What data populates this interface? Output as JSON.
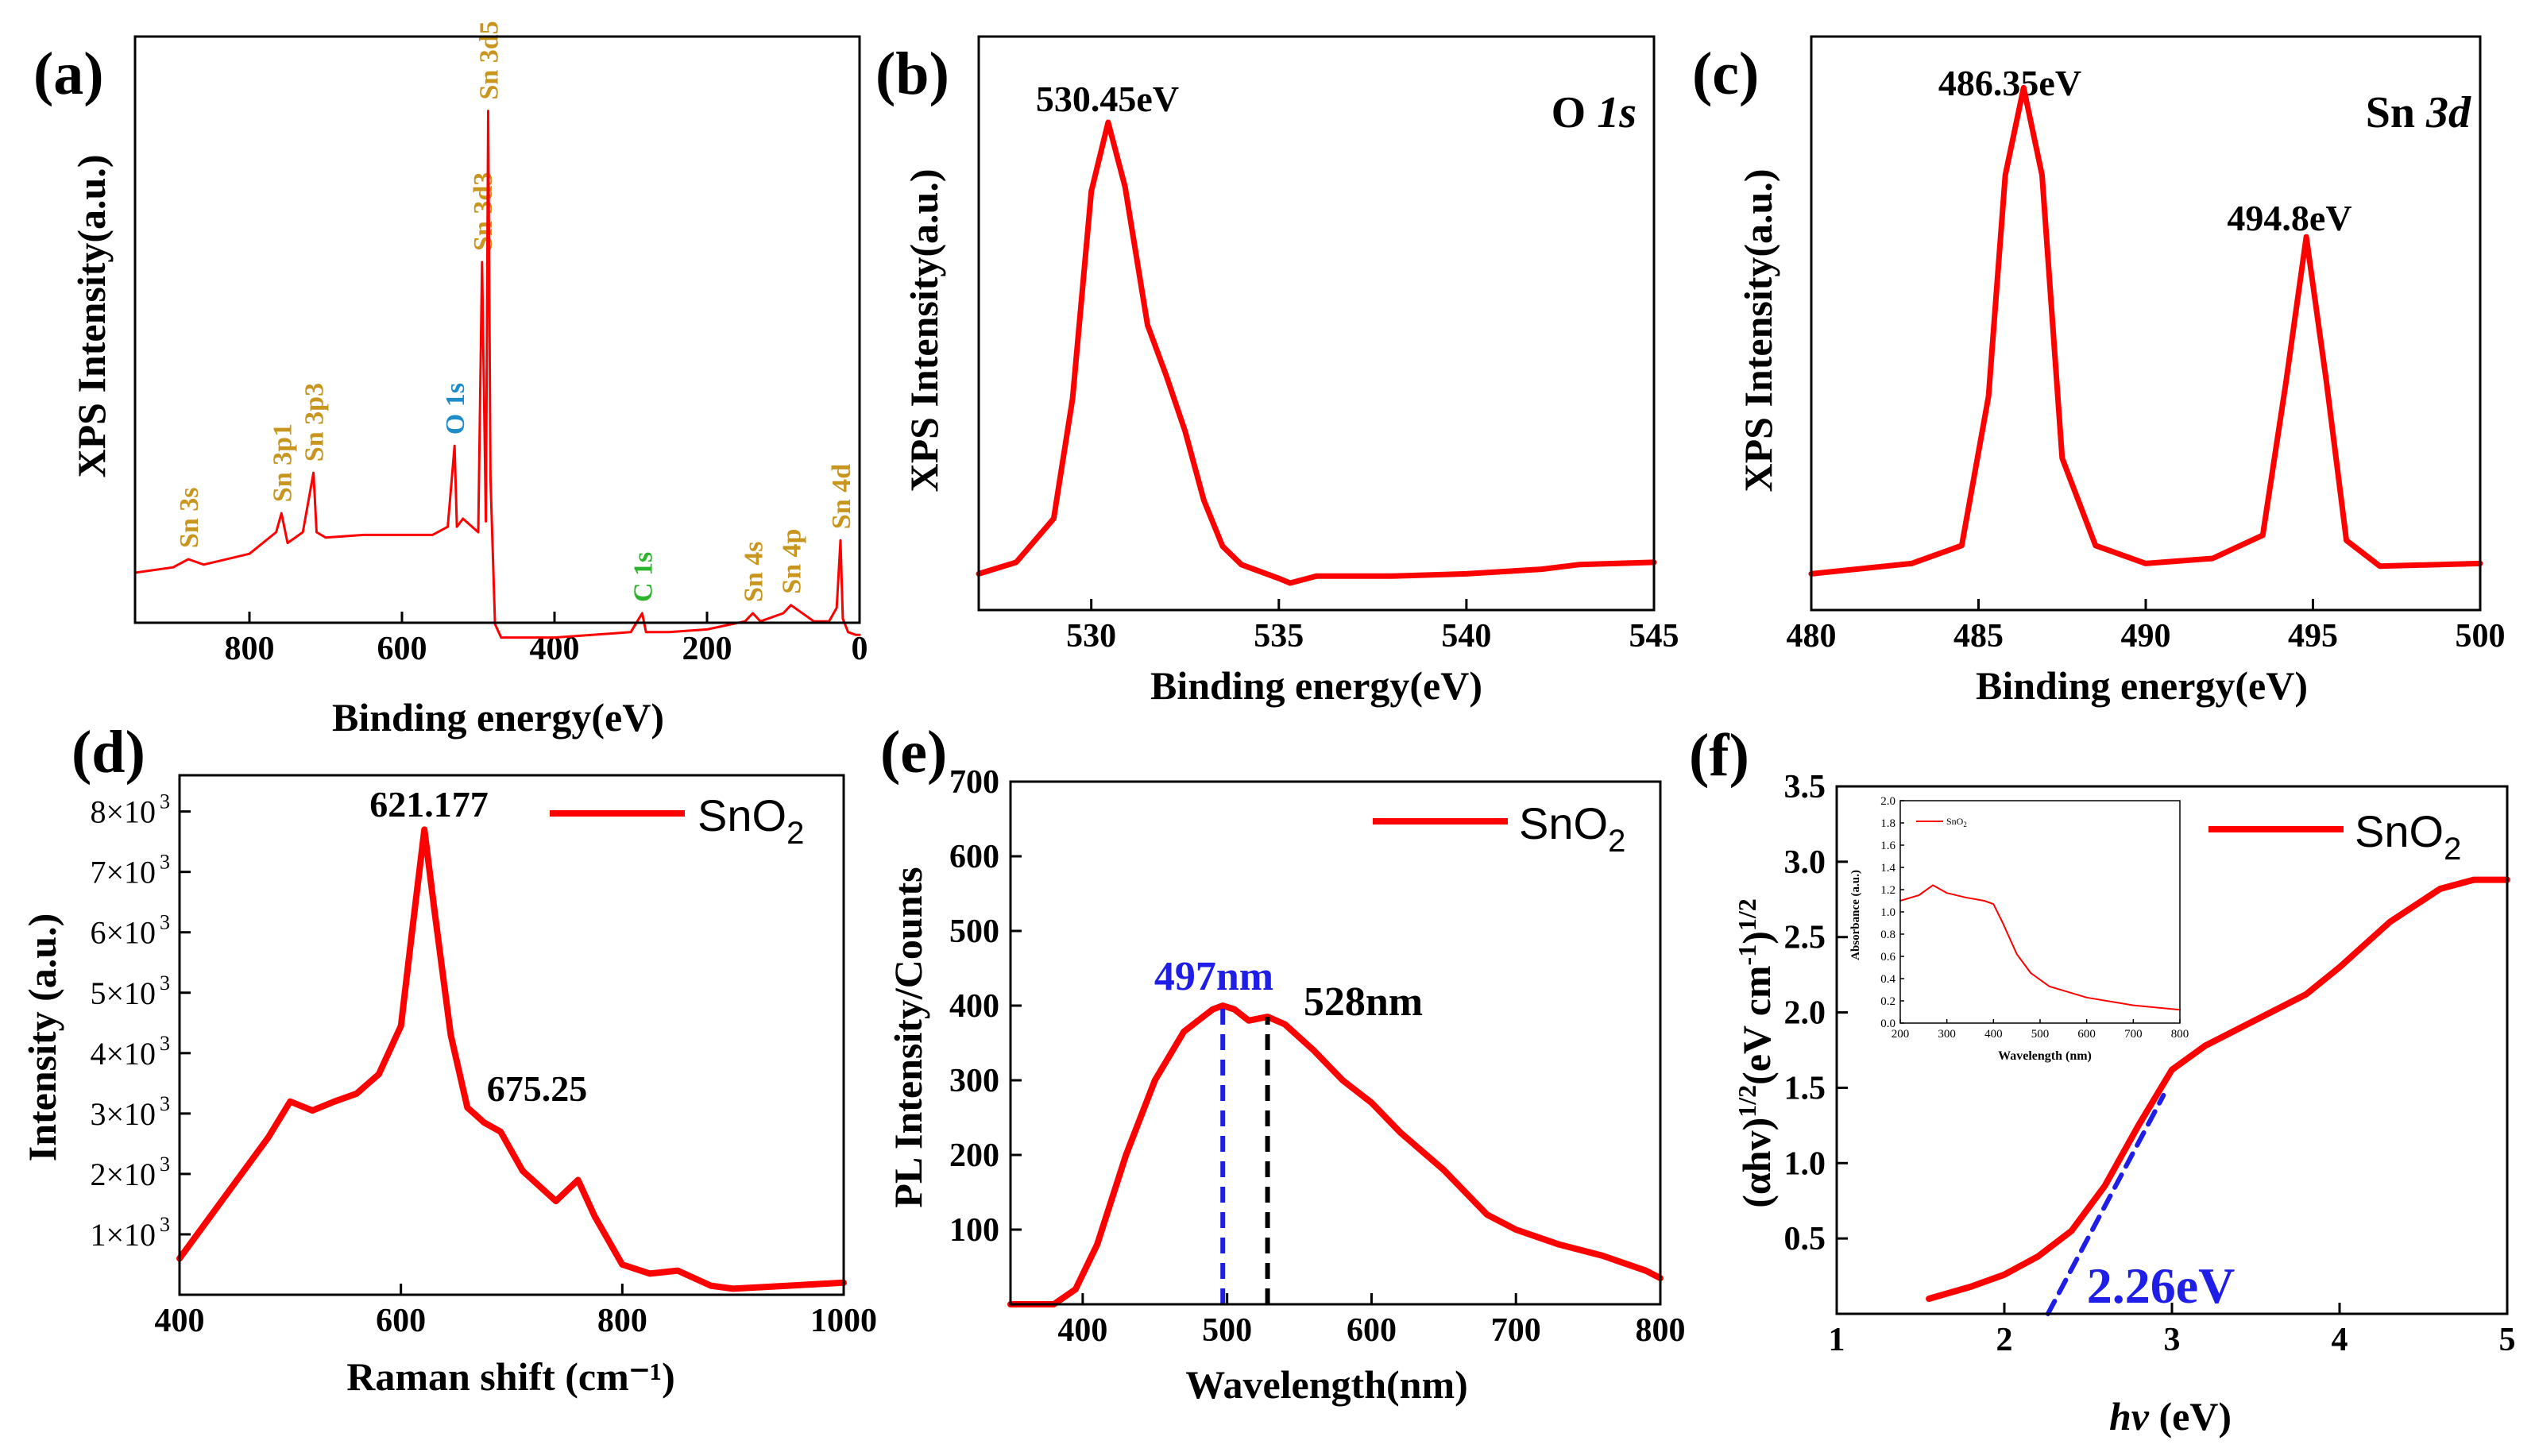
{
  "panels": {
    "a": {
      "label": "(a)",
      "xlabel": "Binding energy(eV)",
      "ylabel": "XPS Intensity(a.u.)",
      "xticks": [
        "800",
        "600",
        "400",
        "200",
        "0"
      ]
    },
    "b": {
      "label": "(b)",
      "xlabel": "Binding energy(eV)",
      "ylabel": "XPS Intensity(a.u.)",
      "title_main": "O ",
      "title_orbital": "1s",
      "peak": "530.45eV",
      "xticks": [
        "530",
        "535",
        "540",
        "545"
      ]
    },
    "c": {
      "label": "(c)",
      "xlabel": "Binding energy(eV)",
      "ylabel": "XPS Intensity(a.u.)",
      "title_main": "Sn ",
      "title_orbital": "3d",
      "peak1": "486.35eV",
      "peak2": "494.8eV",
      "xticks": [
        "480",
        "485",
        "490",
        "495",
        "500"
      ]
    },
    "d": {
      "label": "(d)",
      "xlabel": "Raman shift (cm⁻¹)",
      "ylabel": "Intensity (a.u.)",
      "peak1": "621.177",
      "peak2": "675.25",
      "legend": "SnO",
      "legend_sub": "2",
      "xticks": [
        "400",
        "600",
        "800",
        "1000"
      ],
      "ytick_mantissas": [
        "1×10",
        "2×10",
        "3×10",
        "4×10",
        "5×10",
        "6×10",
        "7×10",
        "8×10"
      ],
      "ytick_exp": "3"
    },
    "e": {
      "label": "(e)",
      "xlabel": "Wavelength(nm)",
      "ylabel": "PL Intensity/Counts",
      "peak1": "497nm",
      "peak2": "528nm",
      "legend": "SnO",
      "legend_sub": "2",
      "xticks": [
        "400",
        "500",
        "600",
        "700",
        "800"
      ],
      "yticks": [
        "100",
        "200",
        "300",
        "400",
        "500",
        "600",
        "700"
      ]
    },
    "f": {
      "label": "(f)",
      "xlabel_italic": "hv",
      "xlabel_rest": " (eV)",
      "ylabel_a": "(αhv)",
      "ylabel_sup1": "1/2",
      "ylabel_b": "(eV cm",
      "ylabel_sup2": "-1",
      "ylabel_c": ")",
      "ylabel_sup3": "1/2",
      "bandgap": "2.26eV",
      "legend": "SnO",
      "legend_sub": "2",
      "xticks": [
        "1",
        "2",
        "3",
        "4",
        "5"
      ],
      "yticks": [
        "0.5",
        "1.0",
        "1.5",
        "2.0",
        "2.5",
        "3.0",
        "3.5"
      ],
      "inset": {
        "ylabel": "Absorbance (a.u.)",
        "xlabel": "Wavelength (nm)",
        "legend": "SnO",
        "legend_sub": "2",
        "xticks": [
          "200",
          "300",
          "400",
          "500",
          "600",
          "700",
          "800"
        ],
        "yticks": [
          "0.0",
          "0.2",
          "0.4",
          "0.6",
          "0.8",
          "1.0",
          "1.2",
          "1.4",
          "1.6",
          "1.8",
          "2.0"
        ]
      }
    }
  },
  "colors": {
    "curve": "#ff0000",
    "sn_label": "#c8961e",
    "o_label": "#1e8cc8",
    "c_label": "#2db42d",
    "blue_marker": "#1e1ee6",
    "black_marker": "#000000"
  },
  "chart_data": [
    {
      "id": "a",
      "type": "line",
      "title": "",
      "xlabel": "Binding energy(eV)",
      "ylabel": "XPS Intensity(a.u.)",
      "xlim": [
        950,
        0
      ],
      "ylim": [
        0,
        100
      ],
      "y_units": "a.u. (relative)",
      "x": [
        950,
        900,
        880,
        860,
        800,
        765,
        758,
        750,
        730,
        716,
        712,
        700,
        650,
        600,
        560,
        540,
        531,
        528,
        520,
        500,
        495,
        490,
        487,
        484,
        478,
        470,
        400,
        300,
        285,
        280,
        250,
        200,
        150,
        140,
        130,
        100,
        90,
        60,
        40,
        30,
        25,
        22,
        15,
        5,
        0
      ],
      "y": [
        12.5,
        13.5,
        15,
        14,
        16,
        20,
        23.5,
        18,
        20,
        31,
        20,
        19,
        19.5,
        19.5,
        19.5,
        21,
        36,
        21,
        22.5,
        20,
        70,
        22,
        98,
        30,
        3,
        0.5,
        0.5,
        1.5,
        5,
        1.5,
        1.5,
        2,
        3.5,
        5,
        3.5,
        5,
        6.5,
        3.5,
        3.5,
        6,
        18.5,
        4,
        1.5,
        1,
        1
      ],
      "peak_labels": [
        {
          "text": "Sn 3s",
          "x": 880,
          "element": "Sn"
        },
        {
          "text": "Sn 3p1",
          "x": 758,
          "element": "Sn"
        },
        {
          "text": "Sn 3p3",
          "x": 716,
          "element": "Sn"
        },
        {
          "text": "O 1s",
          "x": 531,
          "element": "O"
        },
        {
          "text": "Sn 3d3",
          "x": 495,
          "element": "Sn"
        },
        {
          "text": "Sn 3d5",
          "x": 487,
          "element": "Sn"
        },
        {
          "text": "C 1s",
          "x": 285,
          "element": "C"
        },
        {
          "text": "Sn 4s",
          "x": 140,
          "element": "Sn"
        },
        {
          "text": "Sn 4p",
          "x": 90,
          "element": "Sn"
        },
        {
          "text": "Sn 4d",
          "x": 25,
          "element": "Sn"
        }
      ]
    },
    {
      "id": "b",
      "type": "line",
      "title": "O 1s",
      "xlabel": "Binding energy(eV)",
      "ylabel": "XPS Intensity(a.u.)",
      "xlim": [
        527,
        545
      ],
      "ylim": [
        0,
        100
      ],
      "y_units": "a.u. (relative)",
      "x": [
        527,
        528,
        529,
        529.5,
        530,
        530.45,
        530.9,
        531.5,
        532,
        532.5,
        533,
        533.5,
        534,
        535,
        535.3,
        536,
        538,
        540,
        542,
        543,
        545
      ],
      "y": [
        2,
        4.5,
        14,
        40,
        85,
        100,
        86,
        56,
        45,
        33,
        18,
        8,
        4,
        1,
        0,
        1.5,
        1.5,
        2,
        3,
        4,
        4.5
      ],
      "annotations": [
        "530.45eV"
      ]
    },
    {
      "id": "c",
      "type": "line",
      "title": "Sn 3d",
      "xlabel": "Binding energy(eV)",
      "ylabel": "XPS Intensity(a.u.)",
      "xlim": [
        480,
        500
      ],
      "ylim": [
        0,
        105
      ],
      "y_units": "a.u. (relative)",
      "x": [
        480,
        483,
        484.5,
        485.3,
        485.8,
        486.35,
        486.9,
        487.5,
        488.5,
        490,
        492,
        493.5,
        494.2,
        494.8,
        495.4,
        496,
        497,
        500
      ],
      "y": [
        5.5,
        7.5,
        11,
        40,
        83,
        100,
        83,
        28,
        11,
        7.5,
        8.5,
        13,
        43,
        71,
        43,
        12,
        7,
        7.5
      ],
      "annotations": [
        "486.35eV",
        "494.8eV"
      ]
    },
    {
      "id": "d",
      "type": "line",
      "title": "",
      "xlabel": "Raman shift (cm⁻¹)",
      "ylabel": "Intensity (a.u.)",
      "xlim": [
        400,
        1000
      ],
      "ylim": [
        0,
        8600
      ],
      "series": [
        {
          "name": "SnO2",
          "x": [
            400,
            440,
            480,
            500,
            520,
            540,
            560,
            580,
            600,
            610,
            621.177,
            630,
            645,
            660,
            675.25,
            690,
            710,
            740,
            760,
            775,
            800,
            825,
            850,
            880,
            900,
            950,
            1000
          ],
          "y": [
            600,
            1600,
            2600,
            3200,
            3050,
            3200,
            3330,
            3650,
            4450,
            6000,
            7700,
            6400,
            4300,
            3100,
            2850,
            2700,
            2050,
            1550,
            1900,
            1300,
            500,
            350,
            400,
            150,
            100,
            150,
            200
          ]
        }
      ],
      "annotations": [
        "621.177",
        "675.25"
      ]
    },
    {
      "id": "e",
      "type": "line",
      "title": "",
      "xlabel": "Wavelength(nm)",
      "ylabel": "PL Intensity/Counts",
      "xlim": [
        350,
        800
      ],
      "ylim": [
        0,
        700
      ],
      "series": [
        {
          "name": "SnO2",
          "x": [
            350,
            380,
            395,
            410,
            430,
            450,
            470,
            490,
            497,
            505,
            515,
            528,
            540,
            560,
            580,
            600,
            620,
            650,
            680,
            700,
            730,
            760,
            790,
            800
          ],
          "y": [
            0,
            0,
            20,
            80,
            200,
            300,
            365,
            395,
            400,
            395,
            380,
            385,
            375,
            340,
            300,
            270,
            230,
            180,
            120,
            100,
            80,
            65,
            45,
            35
          ]
        }
      ],
      "markers": [
        {
          "x": 497,
          "label": "497nm"
        },
        {
          "x": 528,
          "label": "528nm"
        }
      ]
    },
    {
      "id": "f",
      "type": "line",
      "title": "",
      "xlabel": "hv (eV)",
      "ylabel": "(αhv)^1/2 (eV cm-1)^1/2",
      "xlim": [
        1,
        5
      ],
      "ylim": [
        0,
        3.5
      ],
      "series": [
        {
          "name": "SnO2",
          "x": [
            1.55,
            1.8,
            2.0,
            2.2,
            2.4,
            2.6,
            2.8,
            3.0,
            3.2,
            3.5,
            3.8,
            4.0,
            4.3,
            4.6,
            4.8,
            5.0
          ],
          "y": [
            0.1,
            0.18,
            0.26,
            0.38,
            0.55,
            0.85,
            1.25,
            1.62,
            1.78,
            1.95,
            2.12,
            2.3,
            2.6,
            2.82,
            2.88,
            2.88
          ]
        },
        {
          "name": "tangent fit",
          "x": [
            2.26,
            2.95
          ],
          "y": [
            0.0,
            1.45
          ]
        }
      ],
      "bandgap_eV": 2.26,
      "inset": {
        "type": "line",
        "xlabel": "Wavelength (nm)",
        "ylabel": "Absorbance (a.u.)",
        "xlim": [
          200,
          800
        ],
        "ylim": [
          0,
          2.0
        ],
        "series": [
          {
            "name": "SnO2",
            "x": [
              200,
              240,
              270,
              300,
              340,
              380,
              400,
              420,
              450,
              480,
              520,
              600,
              700,
              800
            ],
            "y": [
              1.1,
              1.15,
              1.24,
              1.17,
              1.13,
              1.1,
              1.07,
              0.9,
              0.62,
              0.45,
              0.33,
              0.23,
              0.16,
              0.12
            ]
          }
        ]
      }
    }
  ]
}
